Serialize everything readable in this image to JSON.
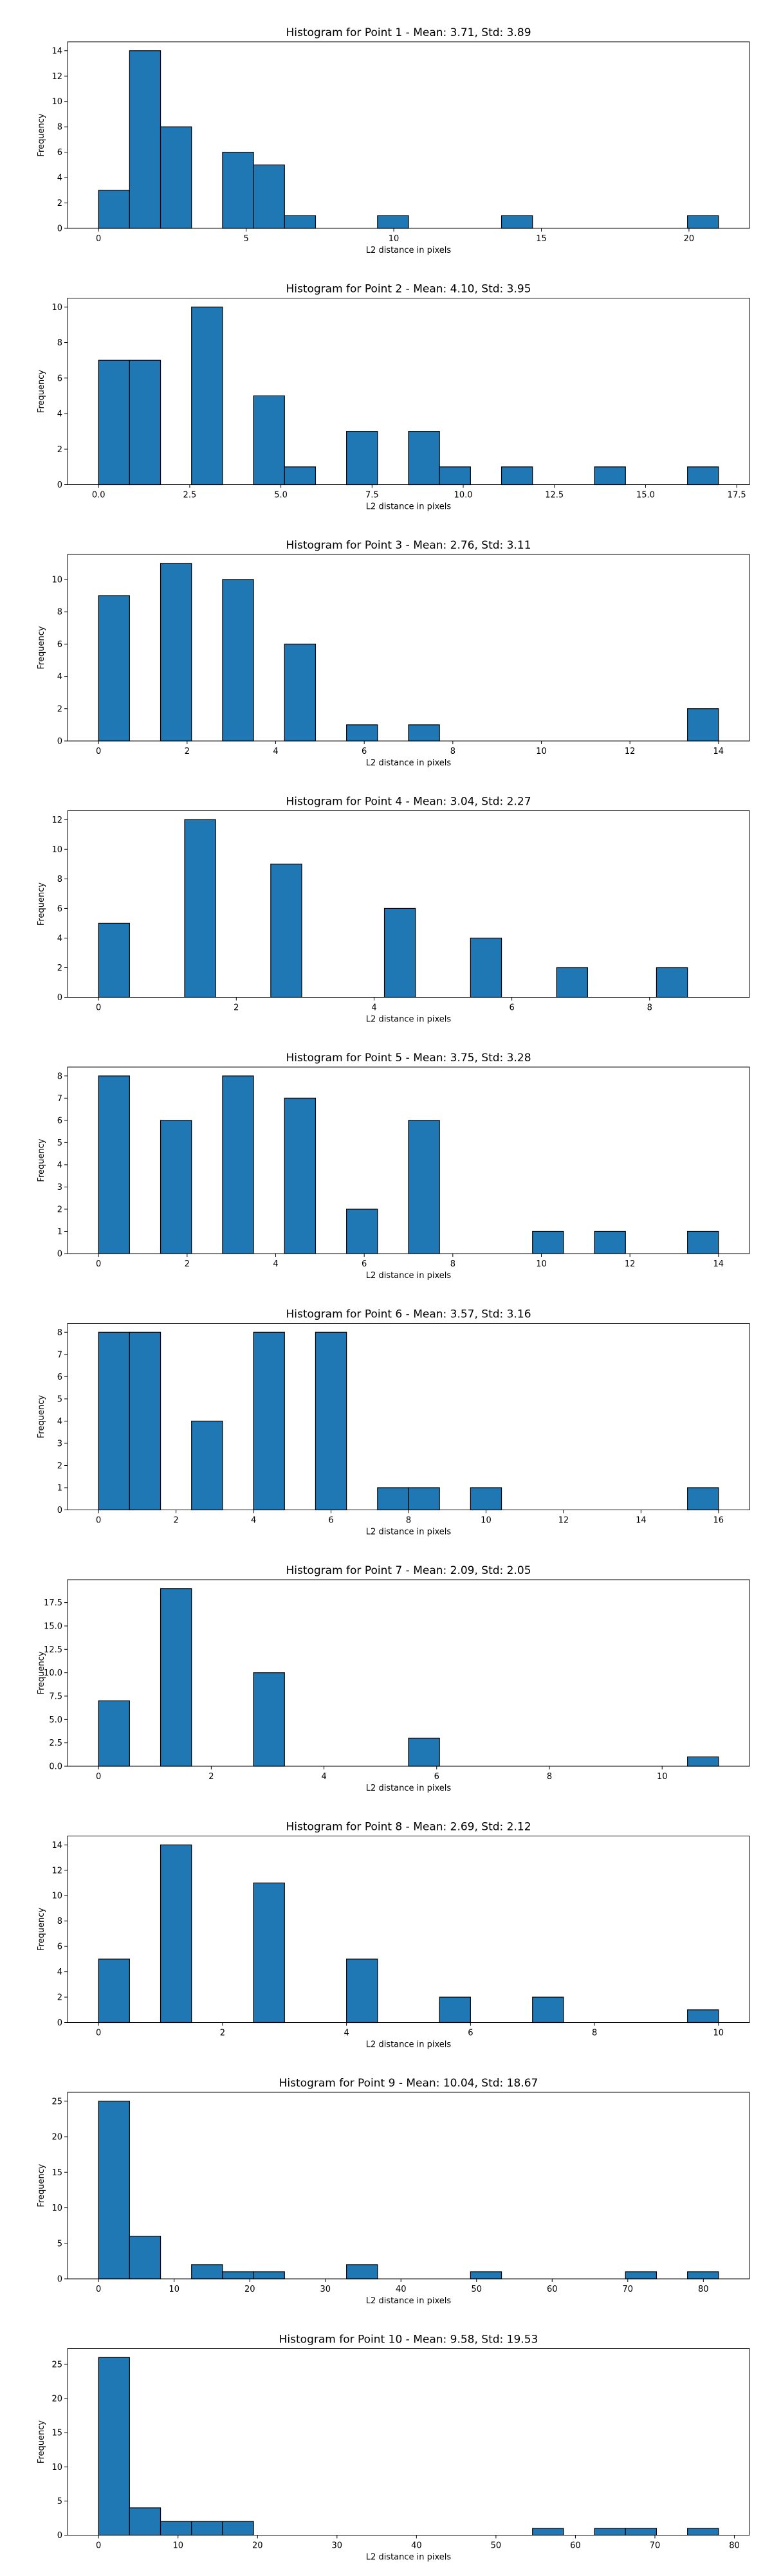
{
  "colors": {
    "bar_fill": "#1f77b4",
    "bar_edge": "#000000",
    "axis": "#000000",
    "background": "#ffffff"
  },
  "chart_data": [
    {
      "type": "bar",
      "title": "Histogram for Point 1 - Mean: 3.71, Std: 3.89",
      "xlabel": "L2 distance in pixels",
      "ylabel": "Frequency",
      "xlim": [
        -1.05,
        22.05
      ],
      "ylim": [
        0,
        14.7
      ],
      "xticks": [
        0,
        5,
        10,
        15,
        20
      ],
      "xticklabels": [
        "0",
        "5",
        "10",
        "15",
        "20"
      ],
      "yticks": [
        0,
        2,
        4,
        6,
        8,
        10,
        12,
        14
      ],
      "yticklabels": [
        "0",
        "2",
        "4",
        "6",
        "8",
        "10",
        "12",
        "14"
      ],
      "bins": [
        [
          0,
          1.05,
          3
        ],
        [
          1.05,
          2.1,
          14
        ],
        [
          2.1,
          3.15,
          8
        ],
        [
          4.2,
          5.25,
          6
        ],
        [
          5.25,
          6.3,
          5
        ],
        [
          6.3,
          7.35,
          1
        ],
        [
          9.45,
          10.5,
          1
        ],
        [
          13.65,
          14.7,
          1
        ],
        [
          19.95,
          21.0,
          1
        ]
      ]
    },
    {
      "type": "bar",
      "title": "Histogram for Point 2 - Mean: 4.10, Std: 3.95",
      "xlabel": "L2 distance in pixels",
      "ylabel": "Frequency",
      "xlim": [
        -0.85,
        17.85
      ],
      "ylim": [
        0,
        10.5
      ],
      "xticks": [
        0,
        2.5,
        5,
        7.5,
        10,
        12.5,
        15,
        17.5
      ],
      "xticklabels": [
        "0.0",
        "2.5",
        "5.0",
        "7.5",
        "10.0",
        "12.5",
        "15.0",
        "17.5"
      ],
      "yticks": [
        0,
        2,
        4,
        6,
        8,
        10
      ],
      "yticklabels": [
        "0",
        "2",
        "4",
        "6",
        "8",
        "10"
      ],
      "bins": [
        [
          0,
          0.85,
          7
        ],
        [
          0.85,
          1.7,
          7
        ],
        [
          2.55,
          3.4,
          10
        ],
        [
          4.25,
          5.1,
          5
        ],
        [
          5.1,
          5.95,
          1
        ],
        [
          6.8,
          7.65,
          3
        ],
        [
          8.5,
          9.35,
          3
        ],
        [
          9.35,
          10.2,
          1
        ],
        [
          11.05,
          11.9,
          1
        ],
        [
          13.6,
          14.45,
          1
        ],
        [
          16.15,
          17.0,
          1
        ]
      ]
    },
    {
      "type": "bar",
      "title": "Histogram for Point 3 - Mean: 2.76, Std: 3.11",
      "xlabel": "L2 distance in pixels",
      "ylabel": "Frequency",
      "xlim": [
        -0.7,
        14.7
      ],
      "ylim": [
        0,
        11.55
      ],
      "xticks": [
        0,
        2,
        4,
        6,
        8,
        10,
        12,
        14
      ],
      "xticklabels": [
        "0",
        "2",
        "4",
        "6",
        "8",
        "10",
        "12",
        "14"
      ],
      "yticks": [
        0,
        2,
        4,
        6,
        8,
        10
      ],
      "yticklabels": [
        "0",
        "2",
        "4",
        "6",
        "8",
        "10"
      ],
      "bins": [
        [
          0,
          0.7,
          9
        ],
        [
          1.4,
          2.1,
          11
        ],
        [
          2.8,
          3.5,
          10
        ],
        [
          4.2,
          4.9,
          6
        ],
        [
          5.6,
          6.3,
          1
        ],
        [
          7.0,
          7.7,
          1
        ],
        [
          13.3,
          14.0,
          2
        ]
      ]
    },
    {
      "type": "bar",
      "title": "Histogram for Point 4 - Mean: 3.04, Std: 2.27",
      "xlabel": "L2 distance in pixels",
      "ylabel": "Frequency",
      "xlim": [
        -0.45,
        9.45
      ],
      "ylim": [
        0,
        12.6
      ],
      "xticks": [
        0,
        2,
        4,
        6,
        8
      ],
      "xticklabels": [
        "0",
        "2",
        "4",
        "6",
        "8"
      ],
      "yticks": [
        0,
        2,
        4,
        6,
        8,
        10,
        12
      ],
      "yticklabels": [
        "0",
        "2",
        "4",
        "6",
        "8",
        "10",
        "12"
      ],
      "bins": [
        [
          0,
          0.45,
          5
        ],
        [
          1.25,
          1.7,
          12
        ],
        [
          2.5,
          2.95,
          9
        ],
        [
          4.15,
          4.6,
          6
        ],
        [
          5.4,
          5.85,
          4
        ],
        [
          6.65,
          7.1,
          2
        ],
        [
          8.1,
          8.55,
          2
        ]
      ]
    },
    {
      "type": "bar",
      "title": "Histogram for Point 5 - Mean: 3.75, Std: 3.28",
      "xlabel": "L2 distance in pixels",
      "ylabel": "Frequency",
      "xlim": [
        -0.7,
        14.7
      ],
      "ylim": [
        0,
        8.4
      ],
      "xticks": [
        0,
        2,
        4,
        6,
        8,
        10,
        12,
        14
      ],
      "xticklabels": [
        "0",
        "2",
        "4",
        "6",
        "8",
        "10",
        "12",
        "14"
      ],
      "yticks": [
        0,
        1,
        2,
        3,
        4,
        5,
        6,
        7,
        8
      ],
      "yticklabels": [
        "0",
        "1",
        "2",
        "3",
        "4",
        "5",
        "6",
        "7",
        "8"
      ],
      "bins": [
        [
          0,
          0.7,
          8
        ],
        [
          1.4,
          2.1,
          6
        ],
        [
          2.8,
          3.5,
          8
        ],
        [
          4.2,
          4.9,
          7
        ],
        [
          5.6,
          6.3,
          2
        ],
        [
          7.0,
          7.7,
          6
        ],
        [
          9.8,
          10.5,
          1
        ],
        [
          11.2,
          11.9,
          1
        ],
        [
          13.3,
          14.0,
          1
        ]
      ]
    },
    {
      "type": "bar",
      "title": "Histogram for Point 6 - Mean: 3.57, Std: 3.16",
      "xlabel": "L2 distance in pixels",
      "ylabel": "Frequency",
      "xlim": [
        -0.8,
        16.8
      ],
      "ylim": [
        0,
        8.4
      ],
      "xticks": [
        0,
        2,
        4,
        6,
        8,
        10,
        12,
        14,
        16
      ],
      "xticklabels": [
        "0",
        "2",
        "4",
        "6",
        "8",
        "10",
        "12",
        "14",
        "16"
      ],
      "yticks": [
        0,
        1,
        2,
        3,
        4,
        5,
        6,
        7,
        8
      ],
      "yticklabels": [
        "0",
        "1",
        "2",
        "3",
        "4",
        "5",
        "6",
        "7",
        "8"
      ],
      "bins": [
        [
          0,
          0.8,
          8
        ],
        [
          0.8,
          1.6,
          8
        ],
        [
          2.4,
          3.2,
          4
        ],
        [
          4.0,
          4.8,
          8
        ],
        [
          5.6,
          6.4,
          8
        ],
        [
          7.2,
          8.0,
          1
        ],
        [
          8.0,
          8.8,
          1
        ],
        [
          9.6,
          10.4,
          1
        ],
        [
          15.2,
          16.0,
          1
        ]
      ]
    },
    {
      "type": "bar",
      "title": "Histogram for Point 7 - Mean: 2.09, Std: 2.05",
      "xlabel": "L2 distance in pixels",
      "ylabel": "Frequency",
      "xlim": [
        -0.55,
        11.55
      ],
      "ylim": [
        0,
        19.95
      ],
      "xticks": [
        0,
        2,
        4,
        6,
        8,
        10
      ],
      "xticklabels": [
        "0",
        "2",
        "4",
        "6",
        "8",
        "10"
      ],
      "yticks": [
        0,
        2.5,
        5,
        7.5,
        10,
        12.5,
        15,
        17.5
      ],
      "yticklabels": [
        "0.0",
        "2.5",
        "5.0",
        "7.5",
        "10.0",
        "12.5",
        "15.0",
        "17.5"
      ],
      "bins": [
        [
          0,
          0.55,
          7
        ],
        [
          1.1,
          1.65,
          19
        ],
        [
          2.75,
          3.3,
          10
        ],
        [
          5.5,
          6.05,
          3
        ],
        [
          10.45,
          11.0,
          1
        ]
      ]
    },
    {
      "type": "bar",
      "title": "Histogram for Point 8 - Mean: 2.69, Std: 2.12",
      "xlabel": "L2 distance in pixels",
      "ylabel": "Frequency",
      "xlim": [
        -0.5,
        10.5
      ],
      "ylim": [
        0,
        14.7
      ],
      "xticks": [
        0,
        2,
        4,
        6,
        8,
        10
      ],
      "xticklabels": [
        "0",
        "2",
        "4",
        "6",
        "8",
        "10"
      ],
      "yticks": [
        0,
        2,
        4,
        6,
        8,
        10,
        12,
        14
      ],
      "yticklabels": [
        "0",
        "2",
        "4",
        "6",
        "8",
        "10",
        "12",
        "14"
      ],
      "bins": [
        [
          0,
          0.5,
          5
        ],
        [
          1.0,
          1.5,
          14
        ],
        [
          2.5,
          3.0,
          11
        ],
        [
          4.0,
          4.5,
          5
        ],
        [
          5.5,
          6.0,
          2
        ],
        [
          7.0,
          7.5,
          2
        ],
        [
          9.5,
          10.0,
          1
        ]
      ]
    },
    {
      "type": "bar",
      "title": "Histogram for Point 9 - Mean: 10.04, Std: 18.67",
      "xlabel": "L2 distance in pixels",
      "ylabel": "Frequency",
      "xlim": [
        -4.1,
        86.1
      ],
      "ylim": [
        0,
        26.25
      ],
      "xticks": [
        0,
        10,
        20,
        30,
        40,
        50,
        60,
        70,
        80
      ],
      "xticklabels": [
        "0",
        "10",
        "20",
        "30",
        "40",
        "50",
        "60",
        "70",
        "80"
      ],
      "yticks": [
        0,
        5,
        10,
        15,
        20,
        25
      ],
      "yticklabels": [
        "0",
        "5",
        "10",
        "15",
        "20",
        "25"
      ],
      "bins": [
        [
          0,
          4.1,
          25
        ],
        [
          4.1,
          8.2,
          6
        ],
        [
          12.3,
          16.4,
          2
        ],
        [
          16.4,
          20.5,
          1
        ],
        [
          20.5,
          24.6,
          1
        ],
        [
          32.8,
          36.9,
          2
        ],
        [
          49.2,
          53.3,
          1
        ],
        [
          69.7,
          73.8,
          1
        ],
        [
          77.9,
          82.0,
          1
        ]
      ]
    },
    {
      "type": "bar",
      "title": "Histogram for Point 10 - Mean: 9.58, Std: 19.53",
      "xlabel": "L2 distance in pixels",
      "ylabel": "Frequency",
      "xlim": [
        -3.9,
        81.9
      ],
      "ylim": [
        0,
        27.3
      ],
      "xticks": [
        0,
        10,
        20,
        30,
        40,
        50,
        60,
        70,
        80
      ],
      "xticklabels": [
        "0",
        "10",
        "20",
        "30",
        "40",
        "50",
        "60",
        "70",
        "80"
      ],
      "yticks": [
        0,
        5,
        10,
        15,
        20,
        25
      ],
      "yticklabels": [
        "0",
        "5",
        "10",
        "15",
        "20",
        "25"
      ],
      "bins": [
        [
          0,
          3.9,
          26
        ],
        [
          3.9,
          7.8,
          4
        ],
        [
          7.8,
          11.7,
          2
        ],
        [
          11.7,
          15.6,
          2
        ],
        [
          15.6,
          19.5,
          2
        ],
        [
          54.6,
          58.5,
          1
        ],
        [
          62.4,
          66.3,
          1
        ],
        [
          66.3,
          70.2,
          1
        ],
        [
          74.1,
          78.0,
          1
        ]
      ]
    }
  ]
}
